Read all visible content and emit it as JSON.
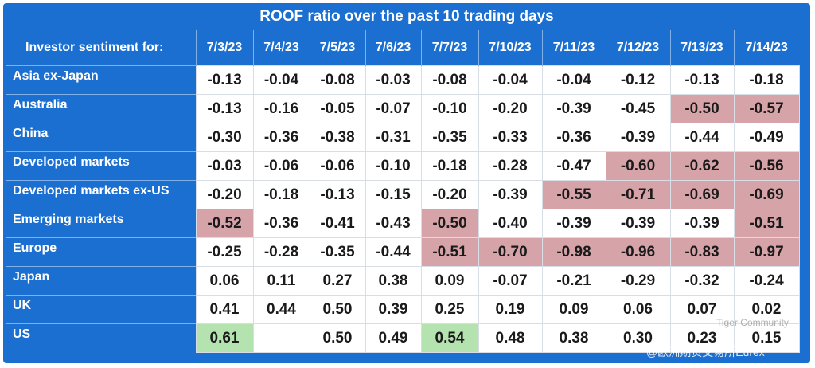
{
  "table": {
    "title": "ROOF ratio over the past 10 trading days",
    "corner": "Investor sentiment for:",
    "columns": [
      "7/3/23",
      "7/4/23",
      "7/5/23",
      "7/6/23",
      "7/7/23",
      "7/10/23",
      "7/11/23",
      "7/12/23",
      "7/13/23",
      "7/14/23"
    ],
    "rows": [
      {
        "label": "Asia ex-Japan",
        "values": [
          "-0.13",
          "-0.04",
          "-0.08",
          "-0.03",
          "-0.08",
          "-0.04",
          "-0.04",
          "-0.12",
          "-0.13",
          "-0.18"
        ]
      },
      {
        "label": "Australia",
        "values": [
          "-0.13",
          "-0.16",
          "-0.05",
          "-0.07",
          "-0.10",
          "-0.20",
          "-0.39",
          "-0.45",
          "-0.50",
          "-0.57"
        ]
      },
      {
        "label": "China",
        "values": [
          "-0.30",
          "-0.36",
          "-0.38",
          "-0.31",
          "-0.35",
          "-0.33",
          "-0.36",
          "-0.39",
          "-0.44",
          "-0.49"
        ]
      },
      {
        "label": "Developed markets",
        "values": [
          "-0.03",
          "-0.06",
          "-0.06",
          "-0.10",
          "-0.18",
          "-0.28",
          "-0.47",
          "-0.60",
          "-0.62",
          "-0.56"
        ]
      },
      {
        "label": "Developed markets ex-US",
        "values": [
          "-0.20",
          "-0.18",
          "-0.13",
          "-0.15",
          "-0.20",
          "-0.39",
          "-0.55",
          "-0.71",
          "-0.69",
          "-0.69"
        ]
      },
      {
        "label": "Emerging markets",
        "values": [
          "-0.52",
          "-0.36",
          "-0.41",
          "-0.43",
          "-0.50",
          "-0.40",
          "-0.39",
          "-0.39",
          "-0.39",
          "-0.51"
        ]
      },
      {
        "label": "Europe",
        "values": [
          "-0.25",
          "-0.28",
          "-0.35",
          "-0.44",
          "-0.51",
          "-0.70",
          "-0.98",
          "-0.96",
          "-0.83",
          "-0.97"
        ]
      },
      {
        "label": "Japan",
        "values": [
          "0.06",
          "0.11",
          "0.27",
          "0.38",
          "0.09",
          "-0.07",
          "-0.21",
          "-0.29",
          "-0.32",
          "-0.24"
        ]
      },
      {
        "label": "UK",
        "values": [
          "0.41",
          "0.44",
          "0.50",
          "0.39",
          "0.25",
          "0.19",
          "0.09",
          "0.06",
          "0.07",
          "0.02"
        ]
      },
      {
        "label": "US",
        "values": [
          "0.61",
          null,
          "0.50",
          "0.49",
          "0.54",
          "0.48",
          "0.38",
          "0.30",
          "0.23",
          "0.15"
        ]
      }
    ]
  },
  "watermark": {
    "brand": "Tiger Community",
    "handle": "@欧洲期货交易所Eurex"
  }
}
